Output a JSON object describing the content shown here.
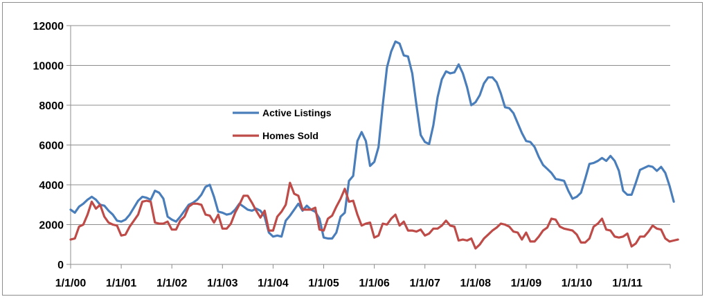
{
  "chart_data": {
    "type": "line",
    "title": "",
    "xlabel": "",
    "ylabel": "",
    "ylim": [
      0,
      12000
    ],
    "yticks": [
      0,
      2000,
      4000,
      6000,
      8000,
      10000,
      12000
    ],
    "xticks": [
      "1/1/00",
      "1/1/01",
      "1/1/02",
      "1/1/03",
      "1/1/04",
      "1/1/05",
      "1/1/06",
      "1/1/07",
      "1/1/08",
      "1/1/09",
      "1/1/10",
      "1/1/11"
    ],
    "grid": "horizontal",
    "legend_position": "inside-center-left",
    "series": [
      {
        "name": "Active Listings",
        "color": "#4a7ebb",
        "values": [
          2750,
          2600,
          2900,
          3050,
          3250,
          3400,
          3250,
          3000,
          2950,
          2700,
          2500,
          2200,
          2150,
          2250,
          2500,
          2850,
          3200,
          3400,
          3350,
          3250,
          3700,
          3600,
          3300,
          2400,
          2250,
          2150,
          2400,
          2700,
          3000,
          3100,
          3250,
          3500,
          3900,
          4000,
          3400,
          2650,
          2600,
          2500,
          2550,
          2750,
          3050,
          2900,
          2750,
          2700,
          2800,
          2700,
          2400,
          1600,
          1400,
          1450,
          1400,
          2200,
          2450,
          2750,
          3050,
          2700,
          2950,
          2750,
          2650,
          2300,
          1350,
          1300,
          1300,
          1600,
          2400,
          2600,
          4200,
          4450,
          6200,
          6650,
          6200,
          4950,
          5150,
          5900,
          8000,
          9900,
          10700,
          11200,
          11100,
          10500,
          10450,
          9600,
          8000,
          6500,
          6150,
          6050,
          7000,
          8400,
          9300,
          9700,
          9600,
          9650,
          10050,
          9600,
          8900,
          8000,
          8150,
          8500,
          9100,
          9400,
          9400,
          9150,
          8600,
          7900,
          7850,
          7600,
          7100,
          6600,
          6200,
          6150,
          5900,
          5400,
          5000,
          4800,
          4600,
          4300,
          4250,
          4200,
          3700,
          3300,
          3400,
          3600,
          4300,
          5050,
          5100,
          5200,
          5350,
          5200,
          5450,
          5200,
          4700,
          3700,
          3500,
          3500,
          4100,
          4750,
          4850,
          4950,
          4900,
          4700,
          4900,
          4600,
          3950,
          3150
        ]
      },
      {
        "name": "Homes Sold",
        "color": "#be4b48",
        "values": [
          1250,
          1300,
          1900,
          2000,
          2500,
          3150,
          2800,
          3000,
          2400,
          2100,
          2000,
          1950,
          1450,
          1500,
          1900,
          2200,
          2500,
          3150,
          3200,
          3150,
          2100,
          2050,
          2050,
          2150,
          1750,
          1750,
          2200,
          2400,
          2900,
          3050,
          3050,
          3000,
          2500,
          2450,
          2100,
          2500,
          1800,
          1800,
          2050,
          2600,
          3000,
          3450,
          3450,
          3100,
          2700,
          2350,
          2700,
          1700,
          1700,
          2400,
          2650,
          3000,
          4100,
          3550,
          3450,
          2750,
          2750,
          2750,
          2850,
          1750,
          1700,
          2300,
          2450,
          2900,
          3300,
          3800,
          3150,
          3200,
          2500,
          1950,
          2050,
          2100,
          1350,
          1450,
          2050,
          2000,
          2300,
          2500,
          1950,
          2150,
          1700,
          1700,
          1650,
          1750,
          1450,
          1550,
          1800,
          1800,
          1950,
          2200,
          1950,
          1900,
          1200,
          1250,
          1200,
          1300,
          800,
          1000,
          1300,
          1500,
          1700,
          1850,
          2050,
          2000,
          1900,
          1650,
          1600,
          1250,
          1600,
          1150,
          1150,
          1400,
          1700,
          1850,
          2300,
          2250,
          1900,
          1800,
          1750,
          1700,
          1500,
          1100,
          1100,
          1300,
          1900,
          2050,
          2300,
          1750,
          1700,
          1400,
          1350,
          1400,
          1550,
          900,
          1050,
          1400,
          1400,
          1650,
          1950,
          1800,
          1750,
          1300,
          1150,
          1200,
          1250
        ]
      }
    ]
  }
}
